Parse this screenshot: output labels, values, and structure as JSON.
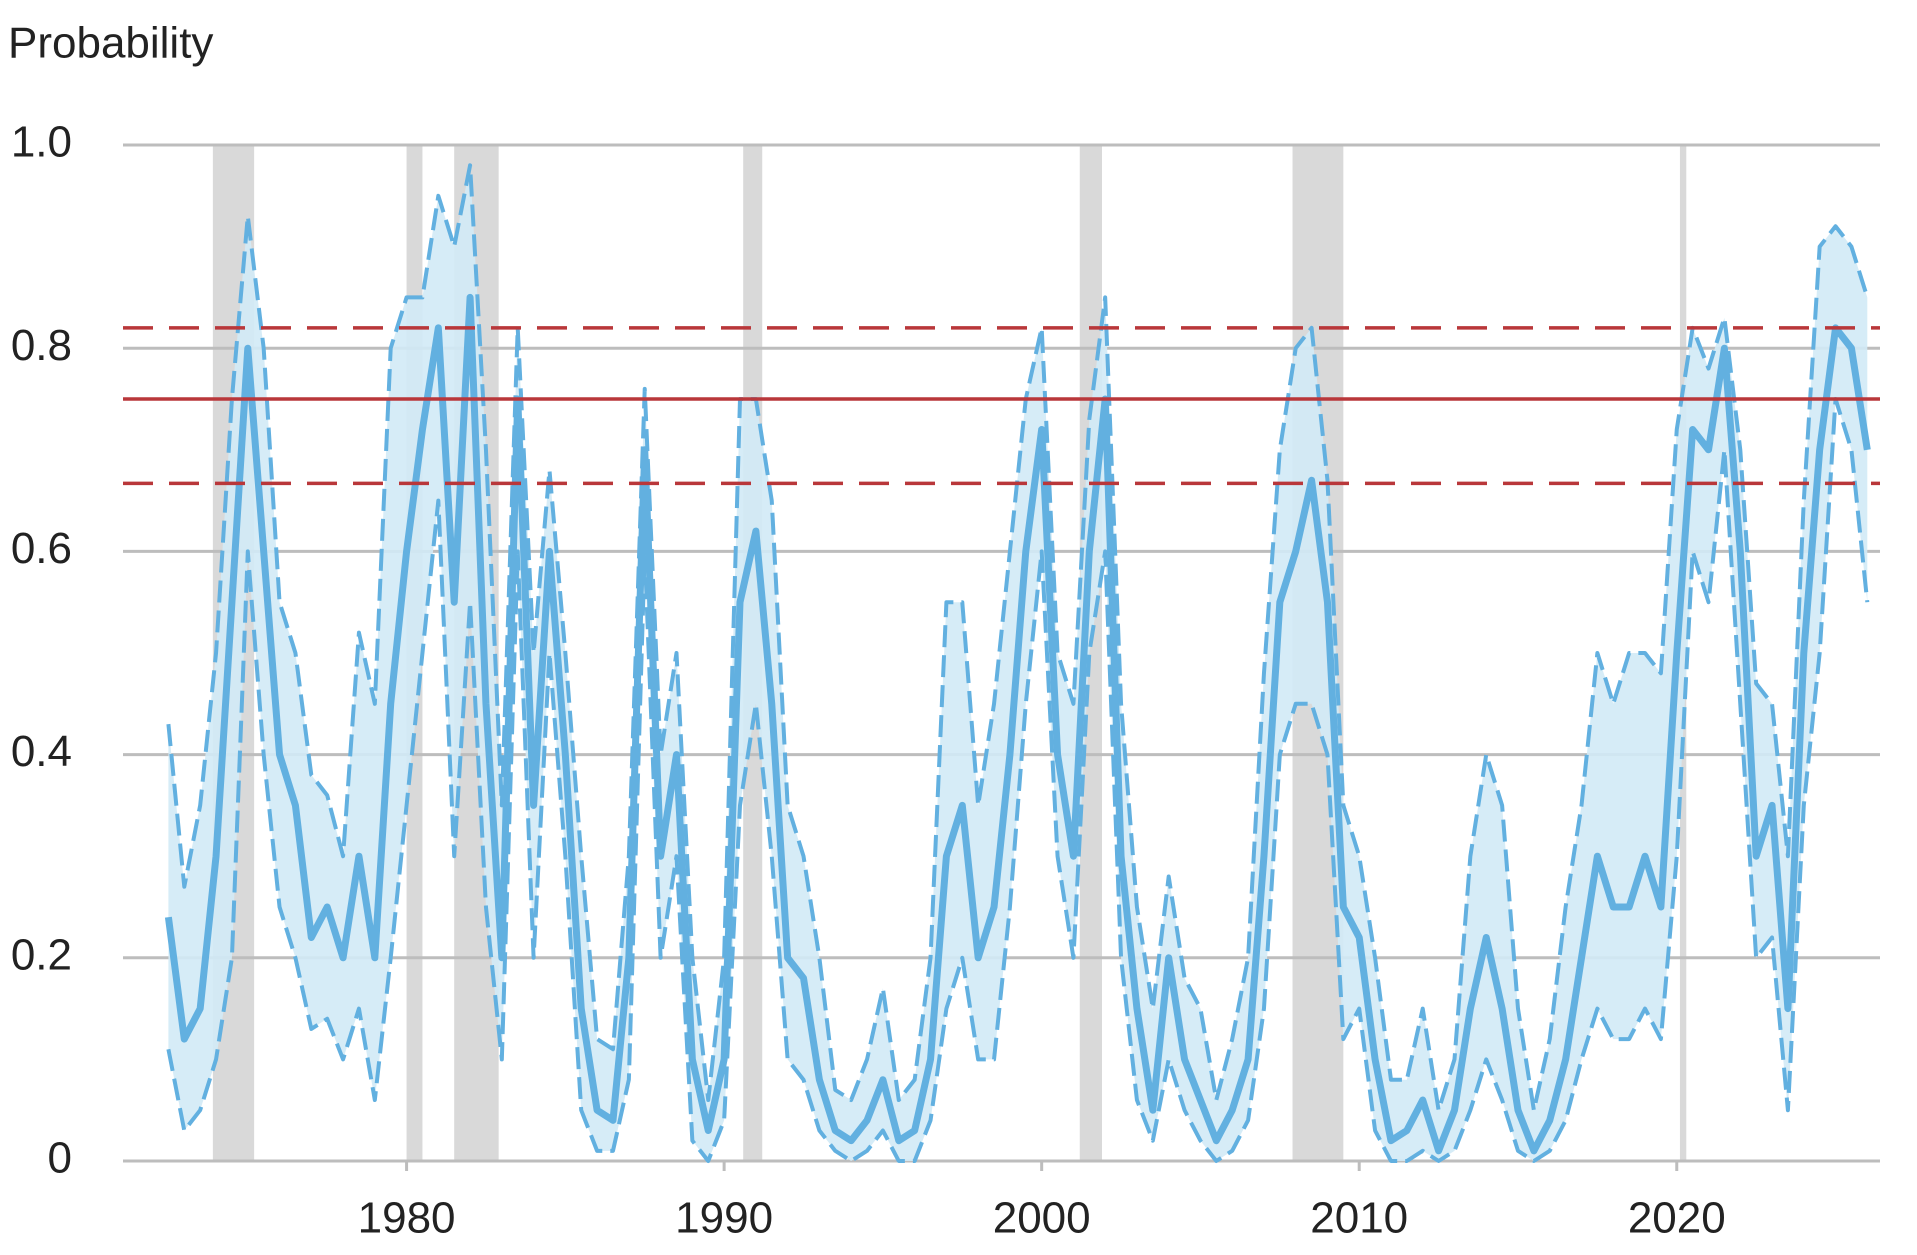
{
  "chart_data": {
    "type": "band_line",
    "ylabel": "Probability",
    "x": [
      1972.5,
      1973,
      1973.5,
      1974,
      1974.5,
      1975,
      1975.5,
      1976,
      1976.5,
      1977,
      1977.5,
      1978,
      1978.5,
      1979,
      1979.5,
      1980,
      1980.5,
      1981,
      1981.5,
      1982,
      1982.5,
      1983,
      1983.5,
      1984,
      1984.5,
      1985,
      1985.5,
      1986,
      1986.5,
      1987,
      1987.5,
      1988,
      1988.5,
      1989,
      1989.5,
      1990,
      1990.5,
      1991,
      1991.5,
      1992,
      1992.5,
      1993,
      1993.5,
      1994,
      1994.5,
      1995,
      1995.5,
      1996,
      1996.5,
      1997,
      1997.5,
      1998,
      1998.5,
      1999,
      1999.5,
      2000,
      2000.5,
      2001,
      2001.5,
      2002,
      2002.5,
      2003,
      2003.5,
      2004,
      2004.5,
      2005,
      2005.5,
      2006,
      2006.5,
      2007,
      2007.5,
      2008,
      2008.5,
      2009,
      2009.5,
      2010,
      2010.5,
      2011,
      2011.5,
      2012,
      2012.5,
      2013,
      2013.5,
      2014,
      2014.5,
      2015,
      2015.5,
      2016,
      2016.5,
      2017,
      2017.5,
      2018,
      2018.5,
      2019,
      2019.5,
      2020,
      2020.5,
      2021,
      2021.5,
      2022,
      2022.5,
      2023,
      2023.5,
      2024,
      2024.5,
      2025,
      2025.5,
      2026
    ],
    "series": [
      {
        "color": "#62b0e0",
        "values": [
          0.24,
          0.12,
          0.15,
          0.3,
          0.55,
          0.8,
          0.6,
          0.4,
          0.35,
          0.22,
          0.25,
          0.2,
          0.3,
          0.2,
          0.45,
          0.6,
          0.72,
          0.82,
          0.55,
          0.85,
          0.45,
          0.2,
          0.75,
          0.35,
          0.6,
          0.4,
          0.15,
          0.05,
          0.04,
          0.2,
          0.7,
          0.3,
          0.4,
          0.1,
          0.03,
          0.1,
          0.55,
          0.62,
          0.45,
          0.2,
          0.18,
          0.08,
          0.03,
          0.02,
          0.04,
          0.08,
          0.02,
          0.03,
          0.1,
          0.3,
          0.35,
          0.2,
          0.25,
          0.4,
          0.6,
          0.72,
          0.4,
          0.3,
          0.6,
          0.75,
          0.3,
          0.15,
          0.05,
          0.2,
          0.1,
          0.06,
          0.02,
          0.05,
          0.1,
          0.3,
          0.55,
          0.6,
          0.67,
          0.55,
          0.25,
          0.22,
          0.1,
          0.02,
          0.03,
          0.06,
          0.01,
          0.05,
          0.15,
          0.22,
          0.15,
          0.05,
          0.01,
          0.04,
          0.1,
          0.2,
          0.3,
          0.25,
          0.25,
          0.3,
          0.25,
          0.5,
          0.72,
          0.7,
          0.8,
          0.6,
          0.3,
          0.35,
          0.15,
          0.5,
          0.7,
          0.82,
          0.8,
          0.7
        ]
      }
    ],
    "band": {
      "color": "#d2eaf6",
      "upper": [
        0.43,
        0.27,
        0.35,
        0.5,
        0.75,
        0.93,
        0.8,
        0.55,
        0.5,
        0.38,
        0.36,
        0.3,
        0.52,
        0.45,
        0.8,
        0.85,
        0.85,
        0.95,
        0.9,
        0.98,
        0.7,
        0.35,
        0.82,
        0.5,
        0.68,
        0.5,
        0.3,
        0.12,
        0.11,
        0.3,
        0.76,
        0.4,
        0.5,
        0.2,
        0.06,
        0.2,
        0.75,
        0.75,
        0.65,
        0.35,
        0.3,
        0.2,
        0.07,
        0.06,
        0.1,
        0.17,
        0.06,
        0.08,
        0.2,
        0.55,
        0.55,
        0.35,
        0.45,
        0.6,
        0.75,
        0.82,
        0.5,
        0.45,
        0.73,
        0.85,
        0.45,
        0.25,
        0.15,
        0.28,
        0.18,
        0.15,
        0.06,
        0.12,
        0.2,
        0.48,
        0.7,
        0.8,
        0.82,
        0.67,
        0.35,
        0.3,
        0.2,
        0.08,
        0.08,
        0.15,
        0.05,
        0.1,
        0.3,
        0.4,
        0.35,
        0.15,
        0.05,
        0.12,
        0.25,
        0.35,
        0.5,
        0.45,
        0.5,
        0.5,
        0.48,
        0.72,
        0.82,
        0.78,
        0.83,
        0.7,
        0.47,
        0.45,
        0.3,
        0.65,
        0.9,
        0.92,
        0.9,
        0.85
      ],
      "lower": [
        0.11,
        0.03,
        0.05,
        0.1,
        0.2,
        0.6,
        0.4,
        0.25,
        0.2,
        0.13,
        0.14,
        0.1,
        0.15,
        0.06,
        0.2,
        0.35,
        0.5,
        0.65,
        0.3,
        0.55,
        0.25,
        0.1,
        0.6,
        0.2,
        0.5,
        0.3,
        0.05,
        0.01,
        0.01,
        0.08,
        0.6,
        0.2,
        0.3,
        0.02,
        0,
        0.04,
        0.35,
        0.45,
        0.3,
        0.1,
        0.08,
        0.03,
        0.01,
        0,
        0.01,
        0.03,
        0,
        0,
        0.04,
        0.15,
        0.2,
        0.1,
        0.1,
        0.25,
        0.45,
        0.6,
        0.3,
        0.2,
        0.5,
        0.6,
        0.2,
        0.06,
        0.02,
        0.1,
        0.05,
        0.02,
        0,
        0.01,
        0.04,
        0.15,
        0.4,
        0.45,
        0.45,
        0.4,
        0.12,
        0.15,
        0.03,
        0,
        0,
        0.01,
        0,
        0.01,
        0.05,
        0.1,
        0.06,
        0.01,
        0,
        0.01,
        0.04,
        0.1,
        0.15,
        0.12,
        0.12,
        0.15,
        0.12,
        0.3,
        0.6,
        0.55,
        0.7,
        0.45,
        0.2,
        0.22,
        0.05,
        0.35,
        0.5,
        0.75,
        0.7,
        0.55
      ]
    },
    "shaded_spans": [
      [
        1973.9,
        1975.2
      ],
      [
        1980.0,
        1980.5
      ],
      [
        1981.5,
        1982.9
      ],
      [
        1990.6,
        1991.2
      ],
      [
        2001.2,
        2001.9
      ],
      [
        2007.9,
        2009.5
      ],
      [
        2020.1,
        2020.3
      ]
    ],
    "shade_color": "#d9d9d9",
    "hlines": [
      {
        "value": 0.82,
        "style": "dashed"
      },
      {
        "value": 0.75,
        "style": "solid"
      },
      {
        "value": 0.667,
        "style": "dashed"
      }
    ],
    "hline_color": "#b9373a",
    "xlim": [
      1971.07,
      2026.4
    ],
    "xticks": [
      1980,
      1990,
      2000,
      2010,
      2020
    ],
    "ylim": [
      0,
      1
    ],
    "yticks": [
      0,
      0.2,
      0.4,
      0.6,
      0.8,
      {
        "value": 1,
        "label": "1.0"
      }
    ],
    "grid": true
  }
}
